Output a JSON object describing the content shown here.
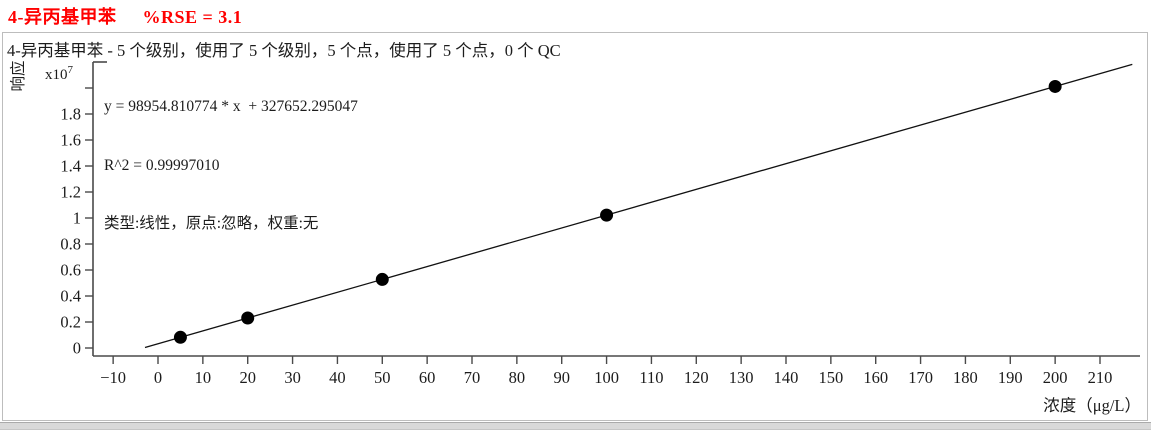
{
  "header": {
    "compound": "4-异丙基甲苯",
    "rse": "%RSE = 3.1"
  },
  "colors": {
    "title_red": "#ff0000",
    "text": "#1c1c1c",
    "axis": "#4a4a4a",
    "marker": "#000000",
    "fit_line": "#111111",
    "frame_border": "#bdbdbd"
  },
  "chart_data": {
    "type": "scatter",
    "title": "4-异丙基甲苯  %RSE = 3.1",
    "subtitle": "4-异丙基甲苯 - 5 个级别，使用了 5 个级别，5 个点，使用了 5 个点，0 个 QC",
    "annotation": {
      "equation": "y = 98954.810774 * x  + 327652.295047",
      "r_squared": "R^2 = 0.99997010",
      "fit_type": "类型:线性，原点:忽略，权重:无"
    },
    "xlabel": "浓度（μg/L）",
    "ylabel": "响应",
    "y_scale_label_base": "x10",
    "y_scale_label_exp": "7",
    "y_scale_factor": 10000000,
    "x_ticks": [
      -10,
      0,
      10,
      20,
      30,
      40,
      50,
      60,
      70,
      80,
      90,
      100,
      110,
      120,
      130,
      140,
      150,
      160,
      170,
      180,
      190,
      200,
      210
    ],
    "x_tick_labels": [
      "−10",
      "0",
      "10",
      "20",
      "30",
      "40",
      "50",
      "60",
      "70",
      "80",
      "90",
      "100",
      "110",
      "120",
      "130",
      "140",
      "150",
      "160",
      "170",
      "180",
      "190",
      "200",
      "210"
    ],
    "y_ticks": [
      0,
      0.2,
      0.4,
      0.6,
      0.8,
      1,
      1.2,
      1.4,
      1.6,
      1.8
    ],
    "y_tick_labels": [
      "0",
      "0.2",
      "0.4",
      "0.6",
      "0.8",
      "1",
      "1.2",
      "1.4",
      "1.6",
      "1.8"
    ],
    "y_ticks_unlabeled": [
      2
    ],
    "x_range": [
      -14.5,
      221
    ],
    "y_range": [
      -0.06,
      2.26
    ],
    "points": [
      {
        "x": 5,
        "y": 822426
      },
      {
        "x": 20,
        "y": 2306748
      },
      {
        "x": 50,
        "y": 5275393
      },
      {
        "x": 100,
        "y": 10223133
      },
      {
        "x": 200,
        "y": 20118614
      }
    ],
    "fit_line": {
      "slope": 98954.810774,
      "intercept": 327652.295047,
      "x_draw_start": -2.9,
      "x_draw_end": 217.2
    },
    "legend": "none",
    "grid": false
  }
}
